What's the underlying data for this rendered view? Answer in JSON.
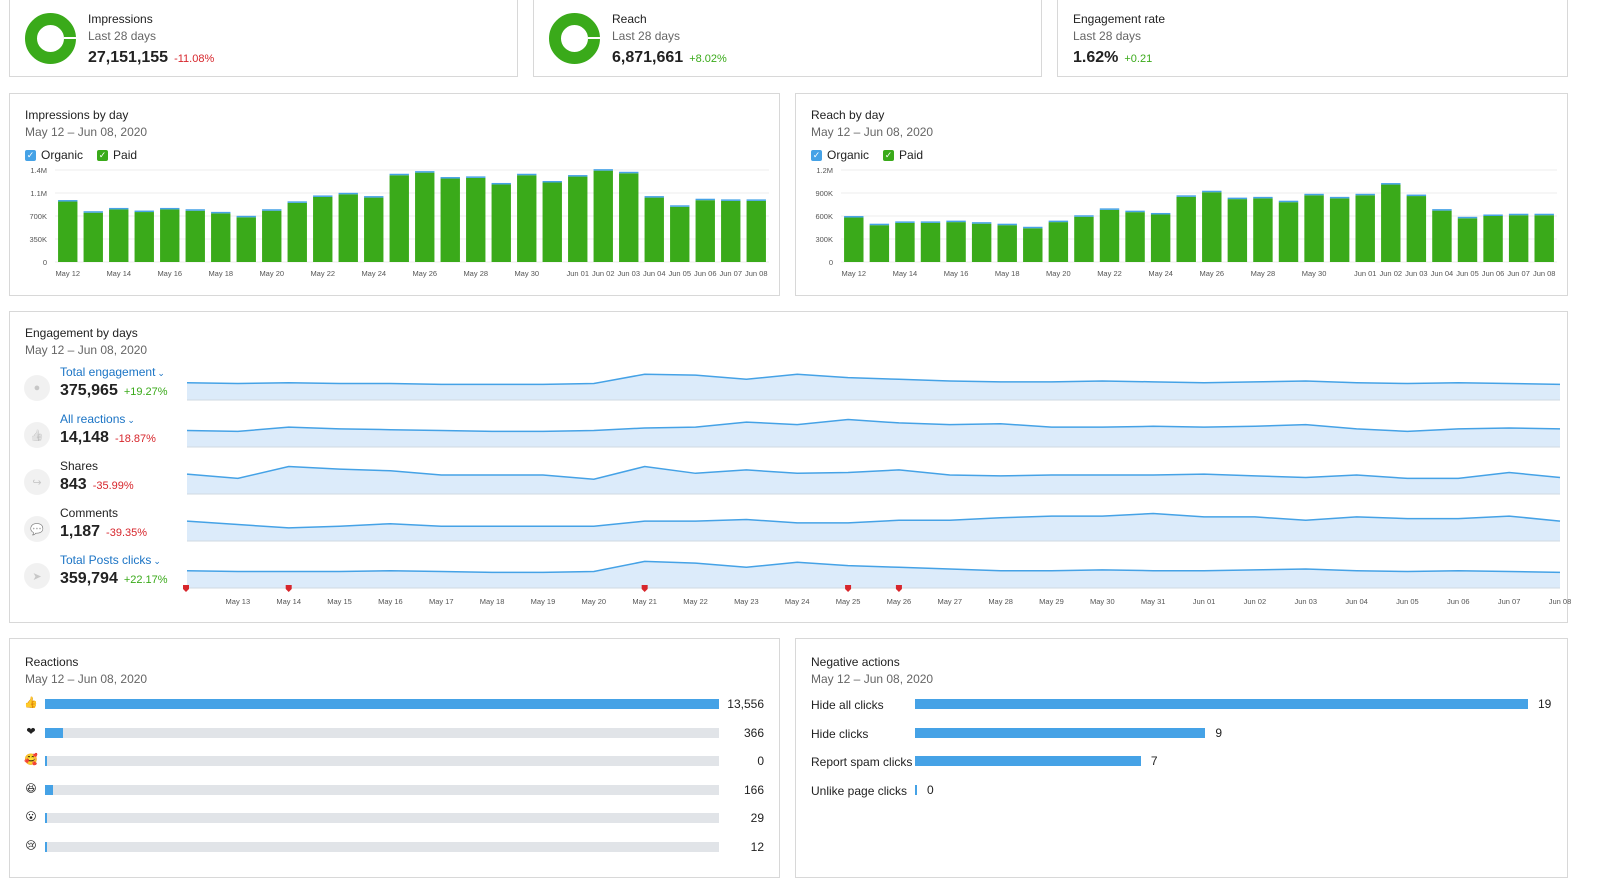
{
  "kpis": [
    {
      "title": "Impressions",
      "period": "Last 28 days",
      "value": "27,151,155",
      "delta": "-11.08%",
      "trend": "negative",
      "icon": "donut-chart-icon"
    },
    {
      "title": "Reach",
      "period": "Last 28 days",
      "value": "6,871,661",
      "delta": "+8.02%",
      "trend": "positive",
      "icon": "donut-chart-icon"
    },
    {
      "title": "Engagement rate",
      "period": "Last 28 days",
      "value": "1.62%",
      "delta": "+0.21",
      "trend": "positive"
    }
  ],
  "impressions_chart": {
    "title": "Impressions by day",
    "period": "May 12 – Jun 08, 2020",
    "legend": [
      "Organic",
      "Paid"
    ]
  },
  "reach_chart": {
    "title": "Reach by day",
    "period": "May 12 – Jun 08, 2020",
    "legend": [
      "Organic",
      "Paid"
    ]
  },
  "engagement": {
    "title": "Engagement by days",
    "period": "May 12 – Jun 08, 2020",
    "rows": [
      {
        "label": "Total engagement",
        "dropdown": true,
        "value": "375,965",
        "delta": "+19.27%",
        "trend": "positive",
        "icon": "person-icon"
      },
      {
        "label": "All reactions",
        "dropdown": true,
        "value": "14,148",
        "delta": "-18.87%",
        "trend": "negative",
        "icon": "thumbs-up-icon"
      },
      {
        "label": "Shares",
        "dropdown": false,
        "value": "843",
        "delta": "-35.99%",
        "trend": "negative",
        "icon": "share-icon"
      },
      {
        "label": "Comments",
        "dropdown": false,
        "value": "1,187",
        "delta": "-39.35%",
        "trend": "negative",
        "icon": "comment-icon"
      },
      {
        "label": "Total Posts clicks",
        "dropdown": true,
        "value": "359,794",
        "delta": "+22.17%",
        "trend": "positive",
        "icon": "cursor-icon"
      }
    ]
  },
  "reactions": {
    "title": "Reactions",
    "period": "May 12 – Jun 08, 2020",
    "max": 13556,
    "items": [
      {
        "icon": "like-reaction-icon",
        "glyph": "👍",
        "value": 13556,
        "label": "13,556"
      },
      {
        "icon": "love-reaction-icon",
        "glyph": "❤",
        "value": 366,
        "label": "366"
      },
      {
        "icon": "care-reaction-icon",
        "glyph": "🥰",
        "value": 0,
        "label": "0"
      },
      {
        "icon": "haha-reaction-icon",
        "glyph": "😆",
        "value": 166,
        "label": "166"
      },
      {
        "icon": "wow-reaction-icon",
        "glyph": "😮",
        "value": 29,
        "label": "29"
      },
      {
        "icon": "sad-reaction-icon",
        "glyph": "😢",
        "value": 12,
        "label": "12"
      }
    ]
  },
  "negative_actions": {
    "title": "Negative actions",
    "period": "May 12 – Jun 08, 2020",
    "max": 19,
    "items": [
      {
        "label": "Hide all clicks",
        "value": 19
      },
      {
        "label": "Hide clicks",
        "value": 9
      },
      {
        "label": "Report spam clicks",
        "value": 7
      },
      {
        "label": "Unlike page clicks",
        "value": 0
      }
    ]
  },
  "colors": {
    "organic": "#45a2e6",
    "paid": "#3aaa1a",
    "line": "#45a2e6",
    "area": "#dcebfa",
    "negative": "#d7262c",
    "positive": "#3aaa1a",
    "marker": "#d7262c"
  },
  "chart_data": [
    {
      "type": "bar",
      "title": "Impressions by day",
      "categories": [
        "May 12",
        "May 13",
        "May 14",
        "May 15",
        "May 16",
        "May 17",
        "May 18",
        "May 19",
        "May 20",
        "May 21",
        "May 22",
        "May 23",
        "May 24",
        "May 25",
        "May 26",
        "May 27",
        "May 28",
        "May 29",
        "May 30",
        "May 31",
        "Jun 01",
        "Jun 02",
        "Jun 03",
        "Jun 04",
        "Jun 05",
        "Jun 06",
        "Jun 07",
        "Jun 08"
      ],
      "tick_labels": [
        "May 12",
        "May 14",
        "May 16",
        "May 18",
        "May 20",
        "May 22",
        "May 24",
        "May 26",
        "May 28",
        "May 30",
        "Jun 01",
        "Jun 02",
        "Jun 03",
        "Jun 04",
        "Jun 05",
        "Jun 06",
        "Jun 07",
        "Jun 08"
      ],
      "y_ticks": [
        "0",
        "350K",
        "700K",
        "1.1M",
        "1.4M"
      ],
      "ylim": [
        0,
        1400000
      ],
      "series": [
        {
          "name": "Organic",
          "values": [
            15000,
            12000,
            13000,
            12000,
            13000,
            12000,
            11000,
            10000,
            12000,
            14000,
            15000,
            16000,
            15000,
            18000,
            19000,
            17000,
            17000,
            16000,
            18000,
            16000,
            17000,
            19000,
            18000,
            15000,
            13000,
            14000,
            14000,
            14000
          ]
        },
        {
          "name": "Paid",
          "values": [
            920000,
            750000,
            800000,
            760000,
            800000,
            780000,
            740000,
            680000,
            780000,
            900000,
            990000,
            1030000,
            980000,
            1320000,
            1360000,
            1270000,
            1280000,
            1180000,
            1320000,
            1210000,
            1300000,
            1390000,
            1350000,
            980000,
            840000,
            940000,
            930000,
            930000
          ]
        }
      ],
      "stacked": true
    },
    {
      "type": "bar",
      "title": "Reach by day",
      "categories": [
        "May 12",
        "May 13",
        "May 14",
        "May 15",
        "May 16",
        "May 17",
        "May 18",
        "May 19",
        "May 20",
        "May 21",
        "May 22",
        "May 23",
        "May 24",
        "May 25",
        "May 26",
        "May 27",
        "May 28",
        "May 29",
        "May 30",
        "May 31",
        "Jun 01",
        "Jun 02",
        "Jun 03",
        "Jun 04",
        "Jun 05",
        "Jun 06",
        "Jun 07",
        "Jun 08"
      ],
      "tick_labels": [
        "May 12",
        "May 14",
        "May 16",
        "May 18",
        "May 20",
        "May 22",
        "May 24",
        "May 26",
        "May 28",
        "May 30",
        "Jun 01",
        "Jun 02",
        "Jun 03",
        "Jun 04",
        "Jun 05",
        "Jun 06",
        "Jun 07",
        "Jun 08"
      ],
      "y_ticks": [
        "0",
        "300K",
        "600K",
        "900K",
        "1.2M"
      ],
      "ylim": [
        0,
        1200000
      ],
      "series": [
        {
          "name": "Organic",
          "values": [
            12000,
            10000,
            10000,
            10000,
            10000,
            10000,
            10000,
            9000,
            10000,
            11000,
            12000,
            12000,
            12000,
            14000,
            15000,
            14000,
            14000,
            13000,
            14000,
            13000,
            14000,
            15000,
            14000,
            12000,
            11000,
            11000,
            12000,
            12000
          ]
        },
        {
          "name": "Paid",
          "values": [
            580000,
            480000,
            510000,
            510000,
            520000,
            500000,
            480000,
            440000,
            520000,
            590000,
            680000,
            650000,
            620000,
            850000,
            910000,
            820000,
            830000,
            780000,
            870000,
            830000,
            870000,
            1010000,
            860000,
            670000,
            570000,
            600000,
            610000,
            610000
          ]
        }
      ],
      "stacked": true
    },
    {
      "type": "area",
      "title": "Engagement by days",
      "x": [
        "May 12",
        "May 13",
        "May 14",
        "May 15",
        "May 16",
        "May 17",
        "May 18",
        "May 19",
        "May 20",
        "May 21",
        "May 22",
        "May 23",
        "May 24",
        "May 25",
        "May 26",
        "May 27",
        "May 28",
        "May 29",
        "May 30",
        "May 31",
        "Jun 01",
        "Jun 02",
        "Jun 03",
        "Jun 04",
        "Jun 05",
        "Jun 06",
        "Jun 07",
        "Jun 08"
      ],
      "tick_labels": [
        "May 13",
        "May 14",
        "May 15",
        "May 16",
        "May 17",
        "May 18",
        "May 19",
        "May 20",
        "May 21",
        "May 22",
        "May 23",
        "May 24",
        "May 25",
        "May 26",
        "May 27",
        "May 28",
        "May 29",
        "May 30",
        "May 31",
        "Jun 01",
        "Jun 02",
        "Jun 03",
        "Jun 04",
        "Jun 05",
        "Jun 06",
        "Jun 07",
        "Jun 08"
      ],
      "series": [
        {
          "name": "Total engagement",
          "values": [
            11,
            10,
            11,
            10,
            10,
            9,
            9,
            9,
            10,
            21,
            20,
            15,
            21,
            17,
            15,
            13,
            12,
            12,
            13,
            12,
            11,
            12,
            13,
            11,
            10,
            11,
            10,
            9
          ]
        },
        {
          "name": "All reactions",
          "values": [
            10,
            9,
            14,
            12,
            11,
            10,
            9,
            9,
            10,
            13,
            14,
            20,
            17,
            23,
            19,
            17,
            18,
            14,
            14,
            15,
            14,
            15,
            17,
            12,
            9,
            12,
            13,
            12
          ]
        },
        {
          "name": "Shares",
          "values": [
            14,
            9,
            23,
            20,
            18,
            13,
            13,
            13,
            8,
            23,
            15,
            19,
            15,
            16,
            19,
            13,
            12,
            13,
            13,
            13,
            14,
            12,
            10,
            13,
            9,
            9,
            16,
            10
          ]
        },
        {
          "name": "Comments",
          "values": [
            14,
            10,
            6,
            8,
            11,
            8,
            8,
            8,
            8,
            14,
            14,
            16,
            12,
            12,
            15,
            15,
            18,
            20,
            20,
            23,
            19,
            19,
            15,
            19,
            17,
            17,
            20,
            14
          ]
        },
        {
          "name": "Total Posts clicks",
          "values": [
            11,
            10,
            10,
            10,
            11,
            10,
            9,
            9,
            10,
            22,
            20,
            15,
            21,
            17,
            15,
            13,
            11,
            11,
            12,
            11,
            11,
            12,
            13,
            11,
            10,
            11,
            10,
            9
          ]
        }
      ],
      "markers": [
        "May 14",
        "May 21",
        "May 25",
        "May 26"
      ]
    },
    {
      "type": "bar",
      "title": "Reactions",
      "categories": [
        "like",
        "love",
        "care",
        "haha",
        "wow",
        "sad"
      ],
      "values": [
        13556,
        366,
        0,
        166,
        29,
        12
      ]
    },
    {
      "type": "bar",
      "title": "Negative actions",
      "categories": [
        "Hide all clicks",
        "Hide clicks",
        "Report spam clicks",
        "Unlike page clicks"
      ],
      "values": [
        19,
        9,
        7,
        0
      ]
    }
  ]
}
